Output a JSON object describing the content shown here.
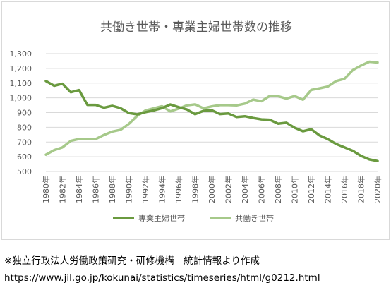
{
  "chart_data": {
    "type": "line",
    "title": "共働き世帯・専業主婦世帯数の推移",
    "ylim": [
      500,
      1300
    ],
    "yticks": [
      "500",
      "600",
      "700",
      "800",
      "900",
      "1,000",
      "1,100",
      "1,200",
      "1,300"
    ],
    "grid": true,
    "legend_position": "bottom",
    "x": [
      1980,
      1981,
      1982,
      1983,
      1984,
      1985,
      1986,
      1987,
      1988,
      1989,
      1990,
      1991,
      1992,
      1993,
      1994,
      1995,
      1996,
      1997,
      1998,
      1999,
      2000,
      2001,
      2002,
      2003,
      2004,
      2005,
      2006,
      2007,
      2008,
      2009,
      2010,
      2011,
      2012,
      2013,
      2014,
      2015,
      2016,
      2017,
      2018,
      2019,
      2020
    ],
    "xtick_labels": [
      "1980年",
      "1982年",
      "1984年",
      "1986年",
      "1988年",
      "1990年",
      "1992年",
      "1994年",
      "1996年",
      "1998年",
      "2000年",
      "2002年",
      "2004年",
      "2006年",
      "2008年",
      "2010年",
      "2012年",
      "2014年",
      "2016年",
      "2018年",
      "2020年"
    ],
    "series": [
      {
        "name": "専業主婦世帯",
        "color": "#6a9a3f",
        "values": [
          1114,
          1082,
          1096,
          1038,
          1053,
          952,
          952,
          933,
          946,
          930,
          897,
          888,
          903,
          915,
          930,
          955,
          937,
          921,
          889,
          912,
          916,
          890,
          894,
          870,
          875,
          863,
          854,
          851,
          825,
          831,
          797,
          773,
          787,
          745,
          720,
          687,
          664,
          641,
          606,
          582,
          571
        ]
      },
      {
        "name": "共働き世帯",
        "color": "#a6c98a",
        "values": [
          614,
          645,
          664,
          708,
          721,
          722,
          720,
          748,
          771,
          783,
          823,
          877,
          914,
          929,
          943,
          908,
          927,
          949,
          956,
          929,
          942,
          951,
          951,
          949,
          961,
          988,
          977,
          1013,
          1011,
          995,
          1012,
          987,
          1054,
          1065,
          1077,
          1114,
          1129,
          1188,
          1219,
          1245,
          1240
        ]
      }
    ]
  },
  "source": {
    "note": "※独立行政法人労働政策研究・研修機構　統計情報より作成",
    "url": "https://www.jil.go.jp/kokunai/statistics/timeseries/html/g0212.html"
  }
}
